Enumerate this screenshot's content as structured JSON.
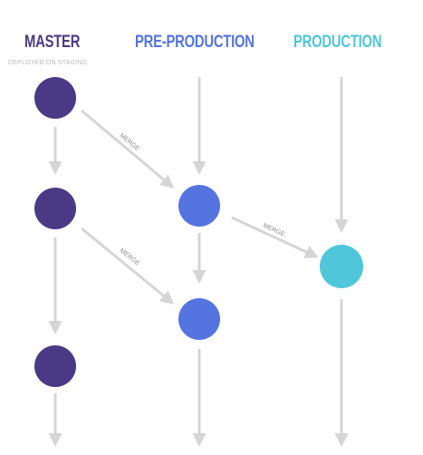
{
  "columns": {
    "master": {
      "title": "MASTER",
      "subtitle": "DEPLOYED ON STAGING"
    },
    "pre_production": {
      "title": "PRE-PRODUCTION"
    },
    "production": {
      "title": "PRODUCTION"
    }
  },
  "merge_labels": [
    "MERGE",
    "MERGE",
    "MERGE"
  ],
  "colors": {
    "master": "#4a3a86",
    "pre_production": "#5474e0",
    "production": "#4fc6da",
    "arrow": "#d5d5d5",
    "merge_text": "#8a8a8a"
  }
}
